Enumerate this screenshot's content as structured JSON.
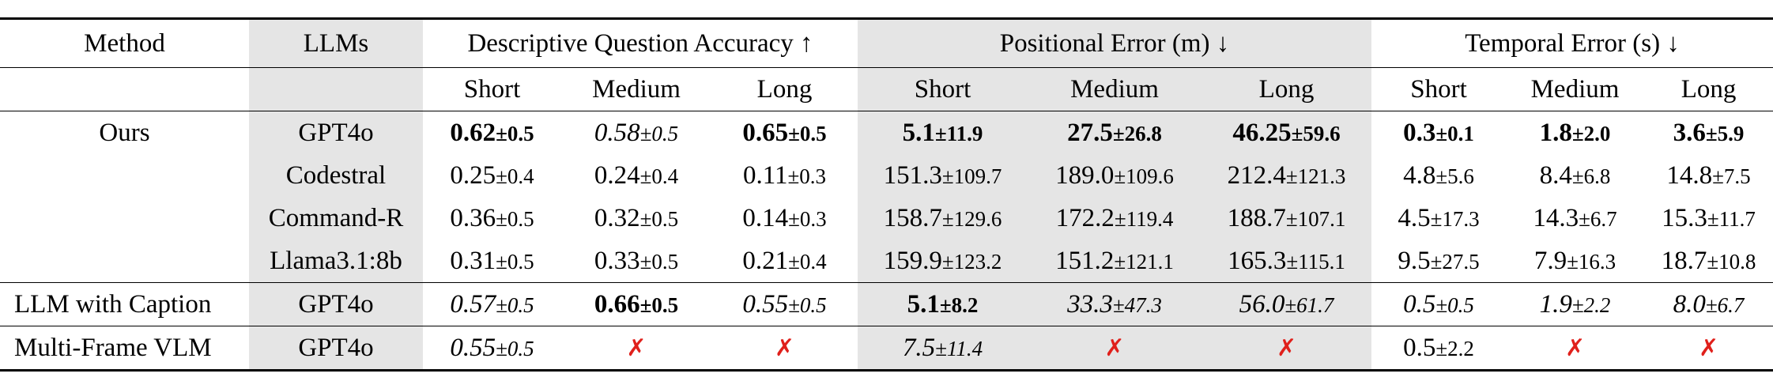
{
  "header": {
    "method": "Method",
    "llms": "LLMs",
    "groups": [
      "Descriptive Question Accuracy ↑",
      "Positional Error (m) ↓",
      "Temporal Error (s) ↓"
    ],
    "subcols": [
      "Short",
      "Medium",
      "Long",
      "Short",
      "Medium",
      "Long",
      "Short",
      "Medium",
      "Long"
    ]
  },
  "rows": [
    {
      "method": "Ours",
      "llm": "GPT4o",
      "cells": [
        {
          "v": "0.62",
          "pm": "±0.5",
          "s": "b"
        },
        {
          "v": "0.58",
          "pm": "±0.5",
          "s": "i"
        },
        {
          "v": "0.65",
          "pm": "±0.5",
          "s": "b"
        },
        {
          "v": "5.1",
          "pm": "±11.9",
          "s": "b"
        },
        {
          "v": "27.5",
          "pm": "±26.8",
          "s": "b"
        },
        {
          "v": "46.25",
          "pm": "±59.6",
          "s": "b"
        },
        {
          "v": "0.3",
          "pm": "±0.1",
          "s": "b"
        },
        {
          "v": "1.8",
          "pm": "±2.0",
          "s": "b"
        },
        {
          "v": "3.6",
          "pm": "±5.9",
          "s": "b"
        }
      ]
    },
    {
      "method": "",
      "llm": "Codestral",
      "cells": [
        {
          "v": "0.25",
          "pm": "±0.4",
          "s": ""
        },
        {
          "v": "0.24",
          "pm": "±0.4",
          "s": ""
        },
        {
          "v": "0.11",
          "pm": "±0.3",
          "s": ""
        },
        {
          "v": "151.3",
          "pm": "±109.7",
          "s": ""
        },
        {
          "v": "189.0",
          "pm": "±109.6",
          "s": ""
        },
        {
          "v": "212.4",
          "pm": "±121.3",
          "s": ""
        },
        {
          "v": "4.8",
          "pm": "±5.6",
          "s": ""
        },
        {
          "v": "8.4",
          "pm": "±6.8",
          "s": ""
        },
        {
          "v": "14.8",
          "pm": "±7.5",
          "s": ""
        }
      ]
    },
    {
      "method": "",
      "llm": "Command-R",
      "cells": [
        {
          "v": "0.36",
          "pm": "±0.5",
          "s": ""
        },
        {
          "v": "0.32",
          "pm": "±0.5",
          "s": ""
        },
        {
          "v": "0.14",
          "pm": "±0.3",
          "s": ""
        },
        {
          "v": "158.7",
          "pm": "±129.6",
          "s": ""
        },
        {
          "v": "172.2",
          "pm": "±119.4",
          "s": ""
        },
        {
          "v": "188.7",
          "pm": "±107.1",
          "s": ""
        },
        {
          "v": "4.5",
          "pm": "±17.3",
          "s": ""
        },
        {
          "v": "14.3",
          "pm": "±6.7",
          "s": ""
        },
        {
          "v": "15.3",
          "pm": "±11.7",
          "s": ""
        }
      ]
    },
    {
      "method": "",
      "llm": "Llama3.1:8b",
      "cells": [
        {
          "v": "0.31",
          "pm": "±0.5",
          "s": ""
        },
        {
          "v": "0.33",
          "pm": "±0.5",
          "s": ""
        },
        {
          "v": "0.21",
          "pm": "±0.4",
          "s": ""
        },
        {
          "v": "159.9",
          "pm": "±123.2",
          "s": ""
        },
        {
          "v": "151.2",
          "pm": "±121.1",
          "s": ""
        },
        {
          "v": "165.3",
          "pm": "±115.1",
          "s": ""
        },
        {
          "v": "9.5",
          "pm": "±27.5",
          "s": ""
        },
        {
          "v": "7.9",
          "pm": "±16.3",
          "s": ""
        },
        {
          "v": "18.7",
          "pm": "±10.8",
          "s": ""
        }
      ]
    },
    {
      "method": "LLM with Caption",
      "llm": "GPT4o",
      "cells": [
        {
          "v": "0.57",
          "pm": "±0.5",
          "s": "i"
        },
        {
          "v": "0.66",
          "pm": "±0.5",
          "s": "b"
        },
        {
          "v": "0.55",
          "pm": "±0.5",
          "s": "i"
        },
        {
          "v": "5.1",
          "pm": "±8.2",
          "s": "b"
        },
        {
          "v": "33.3",
          "pm": "±47.3",
          "s": "i"
        },
        {
          "v": "56.0",
          "pm": "±61.7",
          "s": "i"
        },
        {
          "v": "0.5",
          "pm": "±0.5",
          "s": "i"
        },
        {
          "v": "1.9",
          "pm": "±2.2",
          "s": "i"
        },
        {
          "v": "8.0",
          "pm": "±6.7",
          "s": "i"
        }
      ]
    },
    {
      "method": "Multi-Frame VLM",
      "llm": "GPT4o",
      "cells": [
        {
          "v": "0.55",
          "pm": "±0.5",
          "s": "i"
        },
        {
          "v": "✗",
          "pm": "",
          "s": "x"
        },
        {
          "v": "✗",
          "pm": "",
          "s": "x"
        },
        {
          "v": "7.5",
          "pm": "±11.4",
          "s": "i"
        },
        {
          "v": "✗",
          "pm": "",
          "s": "x"
        },
        {
          "v": "✗",
          "pm": "",
          "s": "x"
        },
        {
          "v": "0.5",
          "pm": "±2.2",
          "s": ""
        },
        {
          "v": "✗",
          "pm": "",
          "s": "x"
        },
        {
          "v": "✗",
          "pm": "",
          "s": "x"
        }
      ]
    }
  ],
  "colors": {
    "shade": "#e5e5e5",
    "cross": "#e0201b"
  }
}
